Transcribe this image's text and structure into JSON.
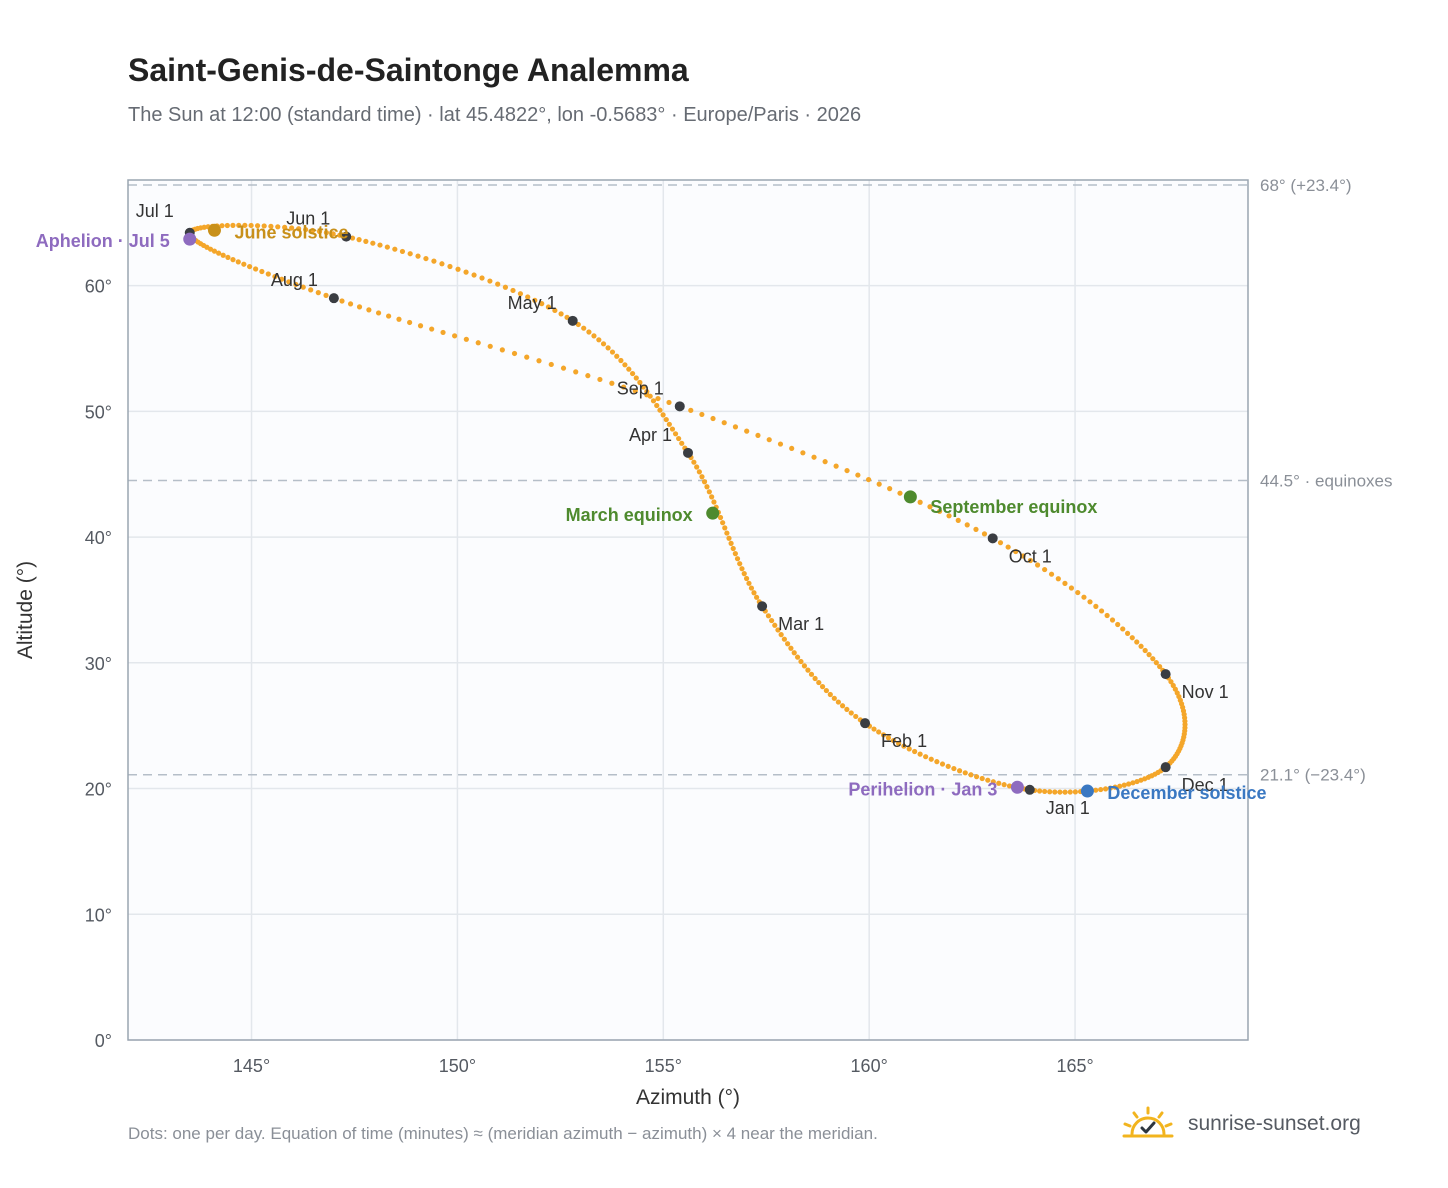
{
  "chart_data": {
    "type": "scatter",
    "title": "Saint-Genis-de-Saintonge Analemma",
    "subtitle": "The Sun at 12:00 (standard time) · lat 45.4822°, lon -0.5683° · Europe/Paris · 2026",
    "xlabel": "Azimuth (°)",
    "ylabel": "Altitude (°)",
    "xlim": [
      142,
      169.2
    ],
    "ylim": [
      0,
      68.4
    ],
    "x_ticks": [
      145,
      150,
      155,
      160,
      165
    ],
    "x_tick_labels": [
      "145°",
      "150°",
      "155°",
      "160°",
      "165°"
    ],
    "y_ticks": [
      0,
      10,
      20,
      30,
      40,
      50,
      60
    ],
    "y_tick_labels": [
      "0°",
      "10°",
      "20°",
      "30°",
      "40°",
      "50°",
      "60°"
    ],
    "grid": true,
    "reference_lines": [
      {
        "y": 68.0,
        "label": "68° (+23.4°)"
      },
      {
        "y": 44.5,
        "label": "44.5° · equinoxes"
      },
      {
        "y": 21.1,
        "label": "21.1° (−23.4°)"
      }
    ],
    "monthly_points": [
      {
        "label": "Jan 1",
        "az": 163.9,
        "alt": 19.9
      },
      {
        "label": "Feb 1",
        "az": 159.9,
        "alt": 25.2
      },
      {
        "label": "Mar 1",
        "az": 157.4,
        "alt": 34.5
      },
      {
        "label": "Apr 1",
        "az": 155.6,
        "alt": 46.7
      },
      {
        "label": "May 1",
        "az": 152.8,
        "alt": 57.2
      },
      {
        "label": "Jun 1",
        "az": 147.3,
        "alt": 63.9
      },
      {
        "label": "Jul 1",
        "az": 143.5,
        "alt": 64.2
      },
      {
        "label": "Aug 1",
        "az": 147.0,
        "alt": 59.0
      },
      {
        "label": "Sep 1",
        "az": 155.4,
        "alt": 50.4
      },
      {
        "label": "Oct 1",
        "az": 163.0,
        "alt": 39.9
      },
      {
        "label": "Nov 1",
        "az": 167.2,
        "alt": 29.1
      },
      {
        "label": "Dec 1",
        "az": 167.2,
        "alt": 21.7
      }
    ],
    "events": [
      {
        "label": "June solstice",
        "az": 144.1,
        "alt": 64.4,
        "color": "#c8901a"
      },
      {
        "label": "Aphelion · Jul 5",
        "az": 143.5,
        "alt": 63.7,
        "color": "#8e6bbf"
      },
      {
        "label": "March equinox",
        "az": 156.2,
        "alt": 41.9,
        "color": "#4e8a2e"
      },
      {
        "label": "September equinox",
        "az": 161.0,
        "alt": 43.2,
        "color": "#4e8a2e"
      },
      {
        "label": "Perihelion · Jan 3",
        "az": 163.6,
        "alt": 20.1,
        "color": "#8e6bbf"
      },
      {
        "label": "December solstice",
        "az": 165.3,
        "alt": 19.8,
        "color": "#3a78c2"
      }
    ],
    "series_color": "#f4a62a"
  },
  "footnote": "Dots: one per day. Equation of time (minutes) ≈ (meridian azimuth − azimuth) × 4 near the meridian.",
  "brand": {
    "text": "sunrise-sunset.org",
    "icon": "sun-logo-icon"
  }
}
